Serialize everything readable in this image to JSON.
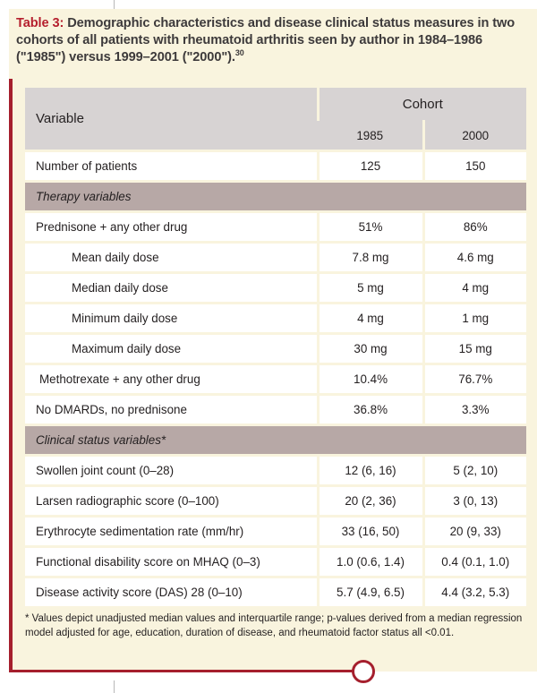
{
  "caption": {
    "label": "Table 3:",
    "text": " Demographic characteristics and disease clinical status measures in two cohorts of all patients with rheumatoid arthritis seen by author in 1984–1986 (\"1985\") versus 1999–2001 (\"2000\").",
    "ref": "30"
  },
  "header": {
    "variable": "Variable",
    "cohort": "Cohort",
    "col1": "1985",
    "col2": "2000"
  },
  "rows": [
    {
      "label": "Number of patients",
      "a": "125",
      "b": "150"
    },
    {
      "section": "Therapy variables"
    },
    {
      "label": "Prednisone + any other drug",
      "a": "51%",
      "b": "86%"
    },
    {
      "label": "Mean daily dose",
      "a": "7.8 mg",
      "b": "4.6 mg"
    },
    {
      "label": "Median daily dose",
      "a": "5 mg",
      "b": "4 mg"
    },
    {
      "label": "Minimum daily dose",
      "a": "4 mg",
      "b": "1 mg"
    },
    {
      "label": "Maximum daily dose",
      "a": "30 mg",
      "b": "15 mg"
    },
    {
      "label": "Methotrexate + any other drug",
      "a": "10.4%",
      "b": "76.7%"
    },
    {
      "label": "No DMARDs, no prednisone",
      "a": "36.8%",
      "b": "3.3%"
    },
    {
      "section": "Clinical status variables*"
    },
    {
      "label": "Swollen joint count (0–28)",
      "a": "12 (6, 16)",
      "b": "5 (2, 10)"
    },
    {
      "label": "Larsen radiographic score (0–100)",
      "a": "20 (2, 36)",
      "b": "3 (0, 13)"
    },
    {
      "label": "Erythrocyte sedimentation rate (mm/hr)",
      "a": "33 (16, 50)",
      "b": "20 (9, 33)"
    },
    {
      "label": "Functional disability score on MHAQ (0–3)",
      "a": "1.0 (0.6, 1.4)",
      "b": "0.4 (0.1, 1.0)"
    },
    {
      "label": "Disease activity score (DAS) 28 (0–10)",
      "a": "5.7 (4.9, 6.5)",
      "b": "4.4 (3.2, 5.3)"
    }
  ],
  "footnote": "* Values depict unadjusted median values and interquartile range; p-values derived from a median regression model adjusted for age, education, duration of disease, and rheumatoid factor status all <0.01.",
  "colors": {
    "panel": "#f9f4de",
    "accent": "#a51f2d",
    "header": "#d7d3d3",
    "section": "#b7a8a6"
  }
}
